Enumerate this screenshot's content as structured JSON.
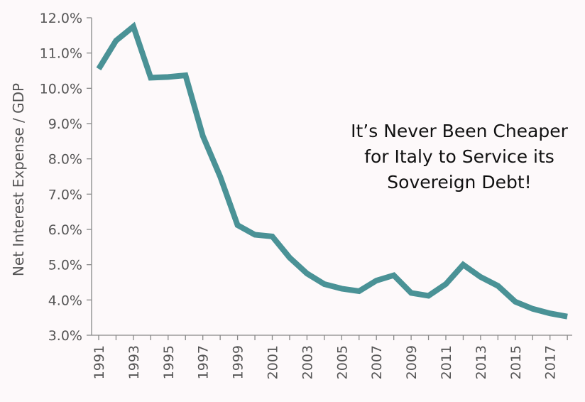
{
  "chart_data": {
    "type": "line",
    "ylabel": "Net Interest Expense / GDP",
    "xlabel": "",
    "annotation": [
      "It’s Never Been Cheaper",
      "for Italy to Service its",
      "Sovereign Debt!"
    ],
    "y_ticks": [
      "3.0%",
      "4.0%",
      "5.0%",
      "6.0%",
      "7.0%",
      "8.0%",
      "9.0%",
      "10.0%",
      "11.0%",
      "12.0%"
    ],
    "x_tick_labels": [
      "1991",
      "1993",
      "1995",
      "1997",
      "1999",
      "2001",
      "2003",
      "2005",
      "2007",
      "2009",
      "2011",
      "2013",
      "2015",
      "2017"
    ],
    "xlim": [
      1991,
      2018.3
    ],
    "ylim": [
      3.0,
      12.0
    ],
    "grid": false,
    "line_color": "#4a9296",
    "series": [
      {
        "x": [
          1991,
          1992,
          1993,
          1994,
          1995,
          1996,
          1997,
          1998,
          1999,
          2000,
          2001,
          2002,
          2003,
          2004,
          2005,
          2006,
          2007,
          2008,
          2009,
          2010,
          2011,
          2012,
          2013,
          2014,
          2015,
          2016,
          2017,
          2018
        ],
        "values": [
          10.55,
          11.35,
          11.75,
          10.3,
          10.32,
          10.37,
          8.65,
          7.5,
          6.12,
          5.85,
          5.8,
          5.2,
          4.75,
          4.45,
          4.32,
          4.25,
          4.55,
          4.7,
          4.2,
          4.12,
          4.45,
          5.0,
          4.65,
          4.4,
          3.95,
          3.75,
          3.62,
          3.53
        ]
      }
    ]
  }
}
